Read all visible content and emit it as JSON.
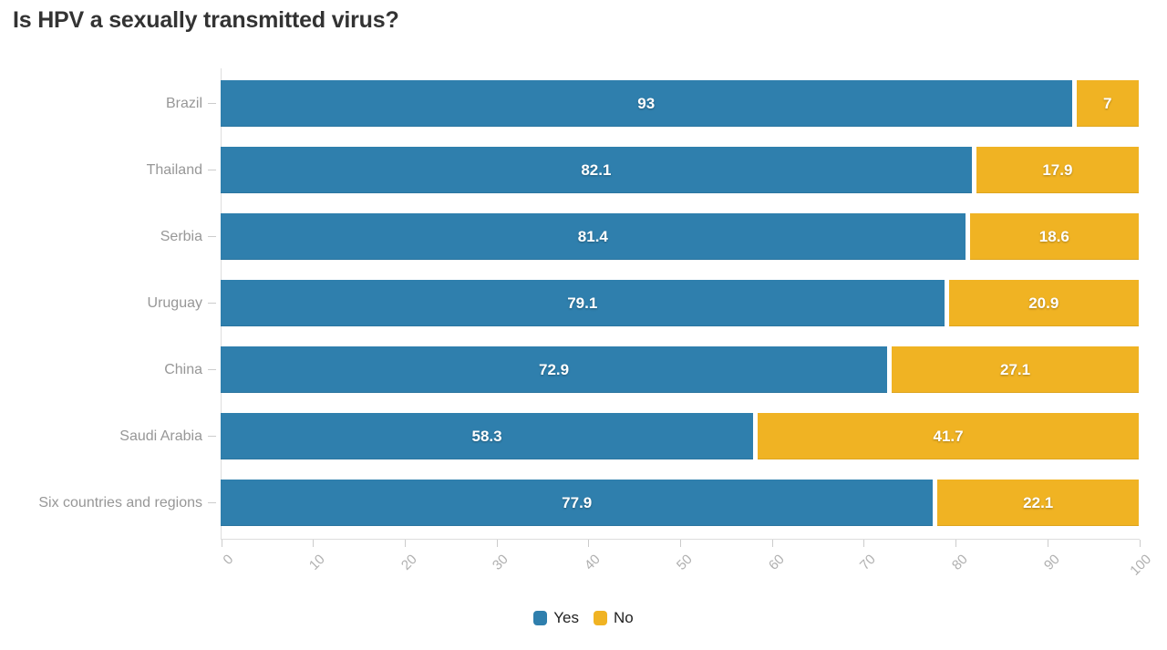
{
  "title": "Is HPV a sexually transmitted virus?",
  "chart_data": {
    "type": "bar",
    "orientation": "horizontal",
    "stacked": true,
    "title": "Is HPV a sexually transmitted virus?",
    "categories": [
      "Brazil",
      "Thailand",
      "Serbia",
      "Uruguay",
      "China",
      "Saudi Arabia",
      "Six countries and regions"
    ],
    "series": [
      {
        "name": "Yes",
        "color": "#2f7fad",
        "values": [
          93,
          82.1,
          81.4,
          79.1,
          72.9,
          58.3,
          77.9
        ]
      },
      {
        "name": "No",
        "color": "#f0b323",
        "values": [
          7,
          17.9,
          18.6,
          20.9,
          27.1,
          41.7,
          22.1
        ]
      }
    ],
    "value_labels": true,
    "xlim": [
      0,
      100
    ],
    "x_ticks": [
      0,
      10,
      20,
      30,
      40,
      50,
      60,
      70,
      80,
      90,
      100
    ],
    "grid": false,
    "legend_position": "bottom"
  },
  "colors": {
    "yes_bar": "#2f7fad",
    "no_bar": "#f0b323",
    "title_text": "#333333",
    "category_label": "#979797",
    "tick_label": "#b0b0b0",
    "axis_line": "#dddddd",
    "value_label": "#ffffff",
    "background": "#ffffff"
  }
}
